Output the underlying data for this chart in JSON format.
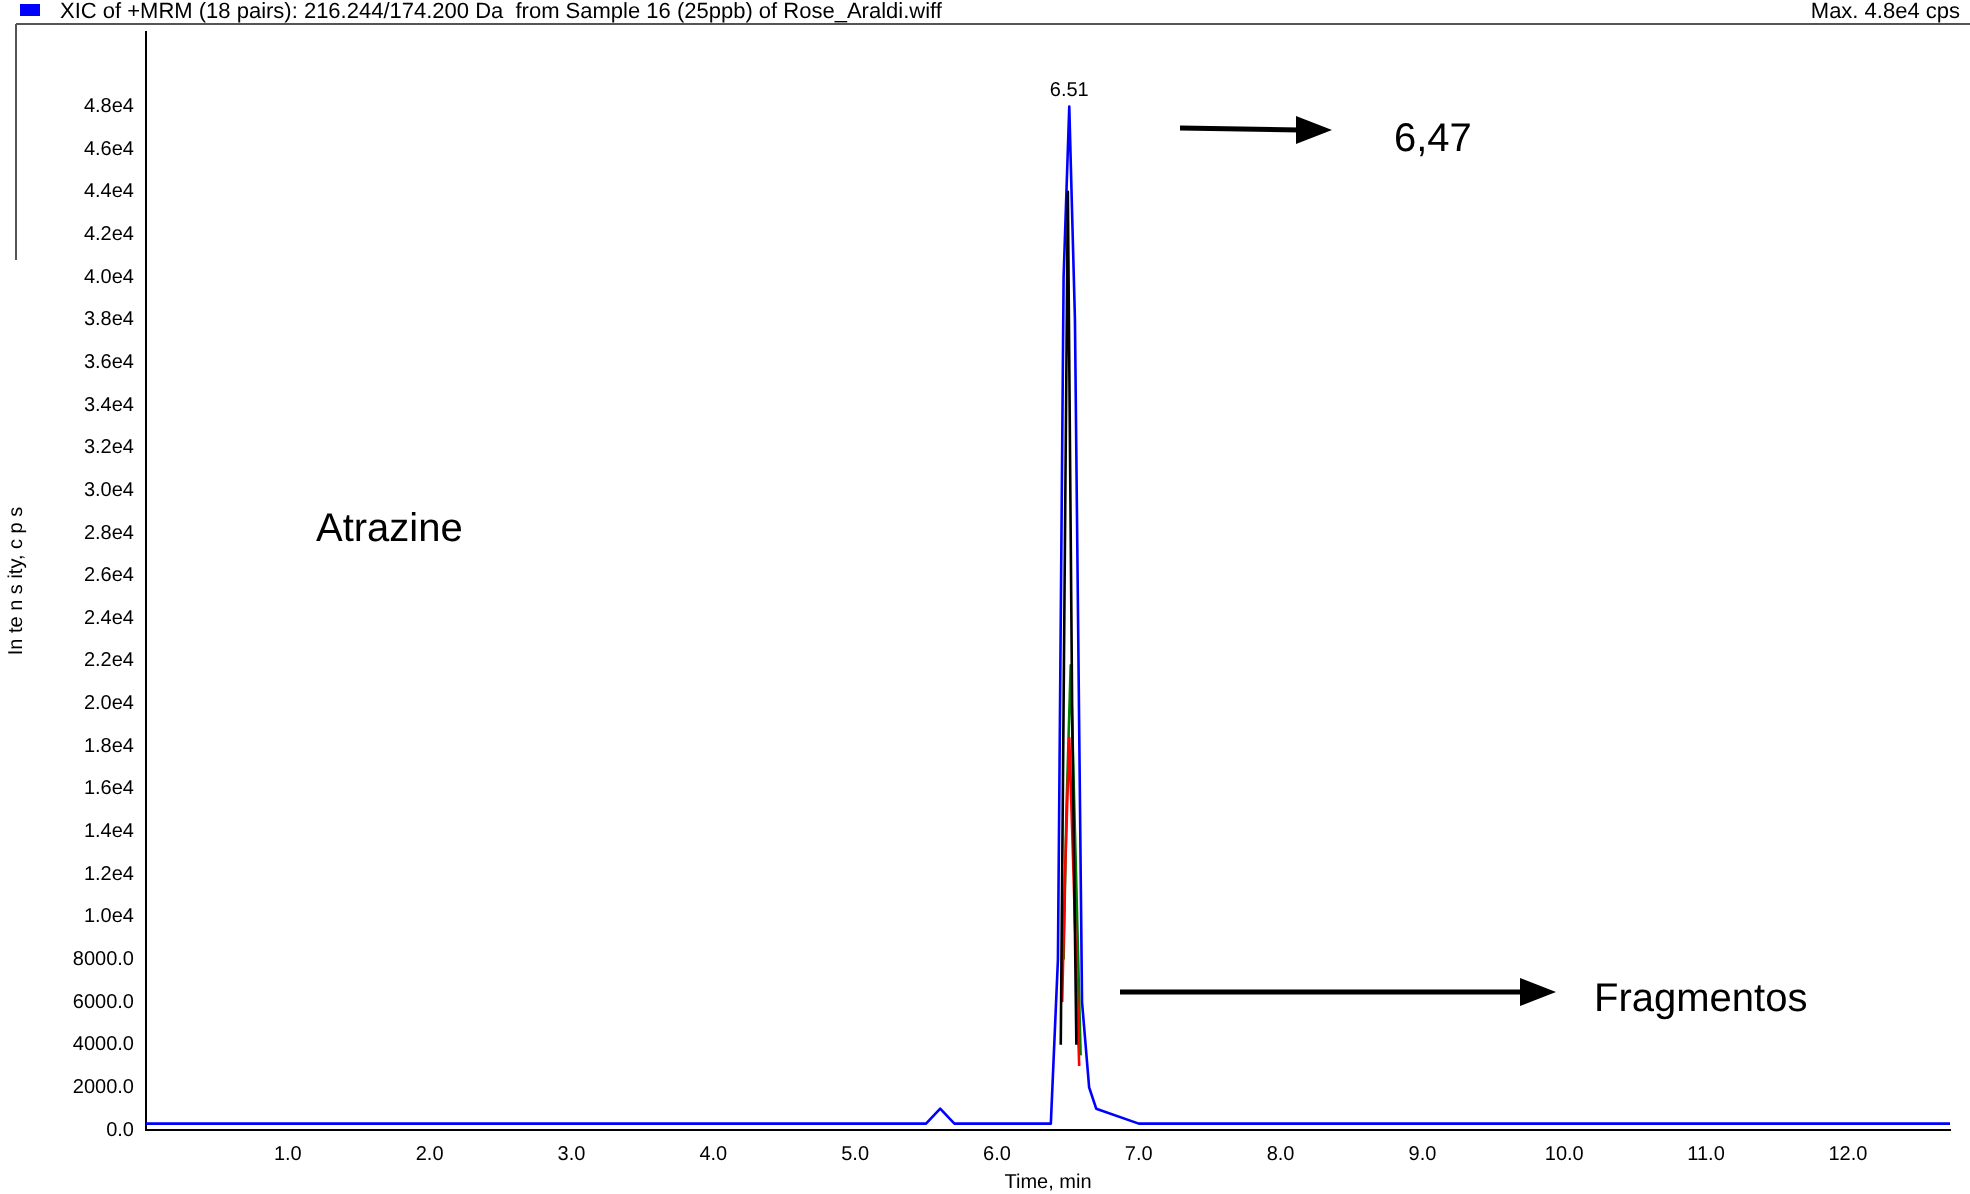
{
  "chart_data": {
    "type": "line",
    "title": "XIC of +MRM (18 pairs): 216.244/174.200 Da  from Sample 16 (25ppb) of Rose_Araldi.wiff",
    "xlabel": "Time, min",
    "ylabel": "In te n s ity, c p s",
    "annotations": [
      "Max. 4.8e4 cps",
      {
        "text": "6.51",
        "x": 6.51,
        "y": 48000
      },
      "6,47",
      "Atrazine",
      "Fragmentos"
    ],
    "marker": "none",
    "grid": false,
    "legend": false,
    "xlim": [
      0,
      12.72
    ],
    "xticks": [
      {
        "value": 1,
        "label": "1.0"
      },
      {
        "value": 2,
        "label": "2.0"
      },
      {
        "value": 3,
        "label": "3.0"
      },
      {
        "value": 4,
        "label": "4.0"
      },
      {
        "value": 5,
        "label": "5.0"
      },
      {
        "value": 6,
        "label": "6.0"
      },
      {
        "value": 7,
        "label": "7.0"
      },
      {
        "value": 8,
        "label": "8.0"
      },
      {
        "value": 9,
        "label": "9.0"
      },
      {
        "value": 10,
        "label": "10.0"
      },
      {
        "value": 11,
        "label": "11.0"
      },
      {
        "value": 12,
        "label": "12.0"
      }
    ],
    "ylim": [
      0,
      51500
    ],
    "yticks": [
      {
        "value": 0,
        "label": "0.0"
      },
      {
        "value": 2000,
        "label": "2000.0"
      },
      {
        "value": 4000,
        "label": "4000.0"
      },
      {
        "value": 6000,
        "label": "6000.0"
      },
      {
        "value": 8000,
        "label": "8000.0"
      },
      {
        "value": 10000,
        "label": "1.0e4"
      },
      {
        "value": 12000,
        "label": "1.2e4"
      },
      {
        "value": 14000,
        "label": "1.4e4"
      },
      {
        "value": 16000,
        "label": "1.6e4"
      },
      {
        "value": 18000,
        "label": "1.8e4"
      },
      {
        "value": 20000,
        "label": "2.0e4"
      },
      {
        "value": 22000,
        "label": "2.2e4"
      },
      {
        "value": 24000,
        "label": "2.4e4"
      },
      {
        "value": 26000,
        "label": "2.6e4"
      },
      {
        "value": 28000,
        "label": "2.8e4"
      },
      {
        "value": 30000,
        "label": "3.0e4"
      },
      {
        "value": 32000,
        "label": "3.2e4"
      },
      {
        "value": 34000,
        "label": "3.4e4"
      },
      {
        "value": 36000,
        "label": "3.6e4"
      },
      {
        "value": 38000,
        "label": "3.8e4"
      },
      {
        "value": 40000,
        "label": "4.0e4"
      },
      {
        "value": 42000,
        "label": "4.2e4"
      },
      {
        "value": 44000,
        "label": "4.4e4"
      },
      {
        "value": 46000,
        "label": "4.6e4"
      },
      {
        "value": 48000,
        "label": "4.8e4"
      }
    ],
    "series": [
      {
        "color": "#000000",
        "x": [
          6.45,
          6.47,
          6.5,
          6.53,
          6.56
        ],
        "values": [
          4000,
          20000,
          44000,
          20000,
          4000
        ]
      },
      {
        "color": "#ff0000",
        "x": [
          6.46,
          6.48,
          6.51,
          6.54,
          6.58
        ],
        "values": [
          6000,
          12000,
          18400,
          12000,
          3000
        ]
      },
      {
        "color": "#008000",
        "x": [
          6.47,
          6.49,
          6.52,
          6.55,
          6.59
        ],
        "values": [
          8000,
          15000,
          21800,
          14000,
          3500
        ]
      },
      {
        "color": "#0000ff",
        "x": [
          0,
          0.5,
          1,
          1.5,
          2,
          2.5,
          3,
          3.5,
          4,
          4.5,
          5,
          5.5,
          5.6,
          5.7,
          6,
          6.38,
          6.43,
          6.47,
          6.51,
          6.55,
          6.6,
          6.65,
          6.7,
          7,
          7.5,
          8,
          8.5,
          9,
          9.5,
          10,
          10.5,
          11,
          11.5,
          12,
          12.5,
          12.72
        ],
        "values": [
          300,
          300,
          300,
          300,
          300,
          300,
          300,
          300,
          300,
          300,
          300,
          300,
          1000,
          300,
          300,
          300,
          8000,
          40000,
          48000,
          38000,
          6000,
          2000,
          1000,
          300,
          300,
          300,
          300,
          300,
          300,
          300,
          300,
          300,
          300,
          300,
          300,
          300
        ]
      }
    ]
  }
}
